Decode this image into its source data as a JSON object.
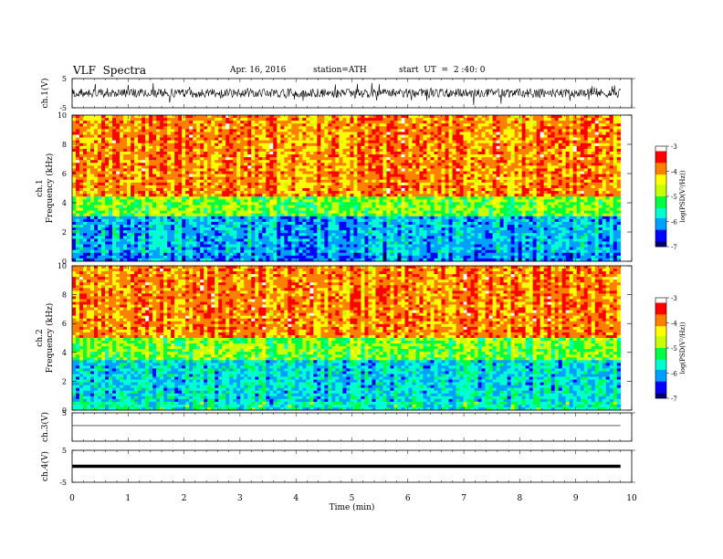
{
  "header": {
    "title": "VLF  Spectra",
    "date": "Apr. 16, 2016",
    "station": "station=ATH",
    "start_ut": "start  UT  =  2 :40: 0"
  },
  "colors": {
    "background": "#ffffff",
    "axis": "#000000",
    "trace": "#000000",
    "colormap": [
      "#000066",
      "#0000ff",
      "#00a0ff",
      "#00ffd0",
      "#00ff40",
      "#c8ff00",
      "#ffff00",
      "#ff8000",
      "#ff0000",
      "#ffffff"
    ]
  },
  "chart_data": [
    {
      "type": "line",
      "panel": "ch.1 waveform",
      "ylabel": "ch.1(V)",
      "ylim": [
        -5,
        5
      ],
      "y_ticks": [
        "5",
        "-5"
      ],
      "xlim": [
        0,
        10
      ],
      "series": [
        {
          "values_description_note": "",
          "baseline": 0,
          "amplitude_range": [
            -3,
            3
          ]
        }
      ]
    },
    {
      "type": "heatmap",
      "panel": "ch.1 spectrogram",
      "ylabel": "ch.1 Frequency (kHz)",
      "ylim": [
        0,
        10
      ],
      "y_ticks": [
        "0",
        "2",
        "4",
        "6",
        "8",
        "10"
      ],
      "xlim": [
        0,
        10
      ],
      "colorbar": {
        "label": "log(PSD(V²/Hz))",
        "range": [
          -7,
          -3
        ],
        "ticks": [
          "-3",
          "-4",
          "-5",
          "-6",
          "-7"
        ]
      },
      "frequency_bands_kHz": [
        {
          "range": [
            0,
            0.5
          ],
          "log_psd": -6.2
        },
        {
          "range": [
            0.5,
            3.0
          ],
          "log_psd": -6.0
        },
        {
          "range": [
            3.0,
            4.5
          ],
          "log_psd": -5.0
        },
        {
          "range": [
            4.5,
            10
          ],
          "log_psd": -3.9
        }
      ]
    },
    {
      "type": "heatmap",
      "panel": "ch.2 spectrogram",
      "ylabel": "ch.2 Frequency (kHz)",
      "ylim": [
        0,
        10
      ],
      "y_ticks": [
        "0",
        "2",
        "4",
        "6",
        "8",
        "10"
      ],
      "xlim": [
        0,
        10
      ],
      "colorbar": {
        "label": "log(PSD(V²/Hz))",
        "range": [
          -7,
          -3
        ],
        "ticks": [
          "-3",
          "-4",
          "-5",
          "-6",
          "-7"
        ]
      },
      "frequency_bands_kHz": [
        {
          "range": [
            0,
            0.5
          ],
          "log_psd": -5.6
        },
        {
          "range": [
            0.5,
            3.5
          ],
          "log_psd": -5.8
        },
        {
          "range": [
            3.5,
            5.0
          ],
          "log_psd": -5.0
        },
        {
          "range": [
            5.0,
            10
          ],
          "log_psd": -3.9
        }
      ]
    },
    {
      "type": "line",
      "panel": "ch.3 waveform",
      "ylabel": "ch.3(V)",
      "ylim": [
        -5,
        5
      ],
      "y_ticks": [
        "5"
      ],
      "xlim": [
        0,
        10
      ],
      "series": [
        {
          "baseline": 0.5
        }
      ]
    },
    {
      "type": "line",
      "panel": "ch.4 waveform",
      "ylabel": "ch.4(V)",
      "ylim": [
        -5,
        5
      ],
      "y_ticks": [
        "5",
        "-5"
      ],
      "xlim": [
        0,
        10
      ],
      "series": [
        {
          "baseline": 0
        }
      ],
      "xlabel": "Time (min)",
      "x_ticks": [
        "0",
        "1",
        "2",
        "3",
        "4",
        "5",
        "6",
        "7",
        "8",
        "9",
        "10"
      ],
      "data_end_min": 9.8
    }
  ]
}
